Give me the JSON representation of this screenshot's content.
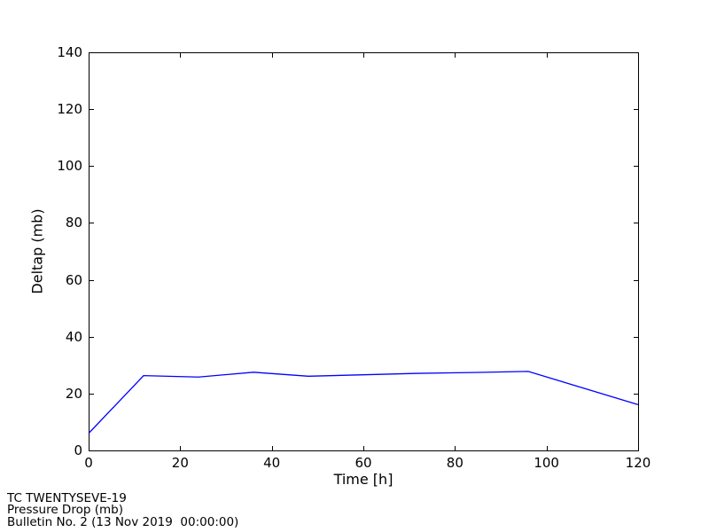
{
  "figure": {
    "background": "#ffffff",
    "axis_color": "#000000"
  },
  "chart_data": {
    "type": "line",
    "title": "",
    "xlabel": "Time [h]",
    "ylabel": "Deltap (mb)",
    "x": [
      0,
      12,
      24,
      36,
      48,
      60,
      72,
      84,
      96,
      120
    ],
    "y": [
      6,
      26.3,
      25.8,
      27.5,
      26.1,
      26.6,
      27.1,
      27.4,
      27.8,
      16.1
    ],
    "series_name": "Pressure Drop (mb)",
    "line_color": "#0000ff",
    "xlim": [
      0,
      120
    ],
    "ylim": [
      0,
      140
    ],
    "xticks": [
      0,
      20,
      40,
      60,
      80,
      100,
      120
    ],
    "yticks": [
      0,
      20,
      40,
      60,
      80,
      100,
      120,
      140
    ],
    "grid": false,
    "legend": null,
    "tick_style": "inward-all-sides"
  },
  "annotation": {
    "line1": "TC TWENTYSEVE-19",
    "line2": "Pressure Drop (mb)",
    "line3": "Bulletin No. 2 (13 Nov 2019  00:00:00)"
  }
}
